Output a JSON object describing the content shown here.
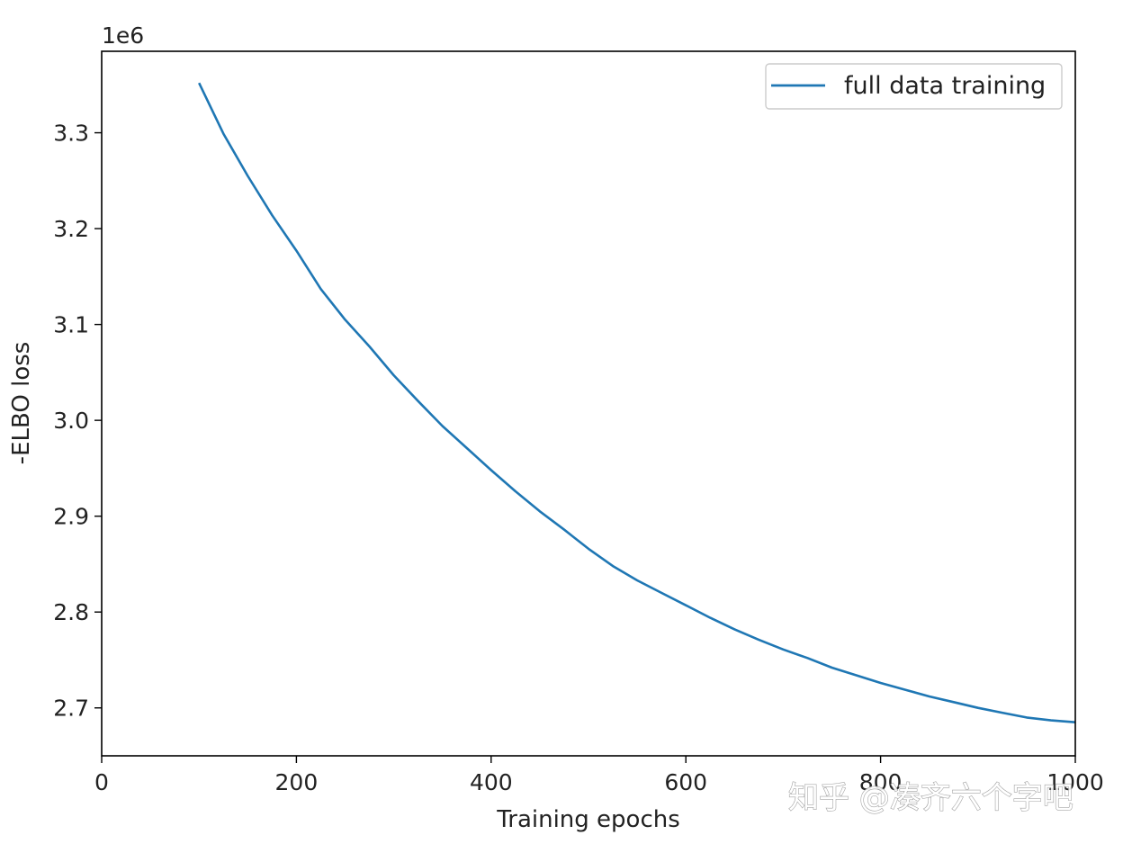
{
  "chart_data": {
    "type": "line",
    "title": "",
    "xlabel": "Training epochs",
    "ylabel": "-ELBO loss",
    "y_offset_label": "1e6",
    "y_scale_factor": 1000000,
    "xlim": [
      0,
      1000
    ],
    "ylim": [
      2.65,
      3.385
    ],
    "xticks": [
      0,
      200,
      400,
      600,
      800,
      1000
    ],
    "yticks": [
      2.7,
      2.8,
      2.9,
      3.0,
      3.1,
      3.2,
      3.3
    ],
    "ytick_labels": [
      "2.7",
      "2.8",
      "2.9",
      "3.0",
      "3.1",
      "3.2",
      "3.3"
    ],
    "grid": false,
    "legend_position": "top-right",
    "series": [
      {
        "name": "full data training",
        "color": "#1f77b4",
        "x": [
          100,
          125,
          150,
          175,
          200,
          225,
          250,
          275,
          300,
          325,
          350,
          375,
          400,
          425,
          450,
          475,
          500,
          525,
          550,
          575,
          600,
          625,
          650,
          675,
          700,
          725,
          750,
          775,
          800,
          825,
          850,
          875,
          900,
          925,
          950,
          975,
          1000
        ],
        "y": [
          3.352,
          3.299,
          3.255,
          3.214,
          3.177,
          3.137,
          3.105,
          3.077,
          3.047,
          3.02,
          2.994,
          2.971,
          2.948,
          2.926,
          2.905,
          2.886,
          2.866,
          2.848,
          2.833,
          2.82,
          2.807,
          2.794,
          2.782,
          2.771,
          2.761,
          2.752,
          2.742,
          2.734,
          2.726,
          2.719,
          2.712,
          2.706,
          2.7,
          2.695,
          2.69,
          2.687,
          2.685
        ]
      }
    ]
  },
  "watermark": "知乎 @凑齐六个字吧"
}
